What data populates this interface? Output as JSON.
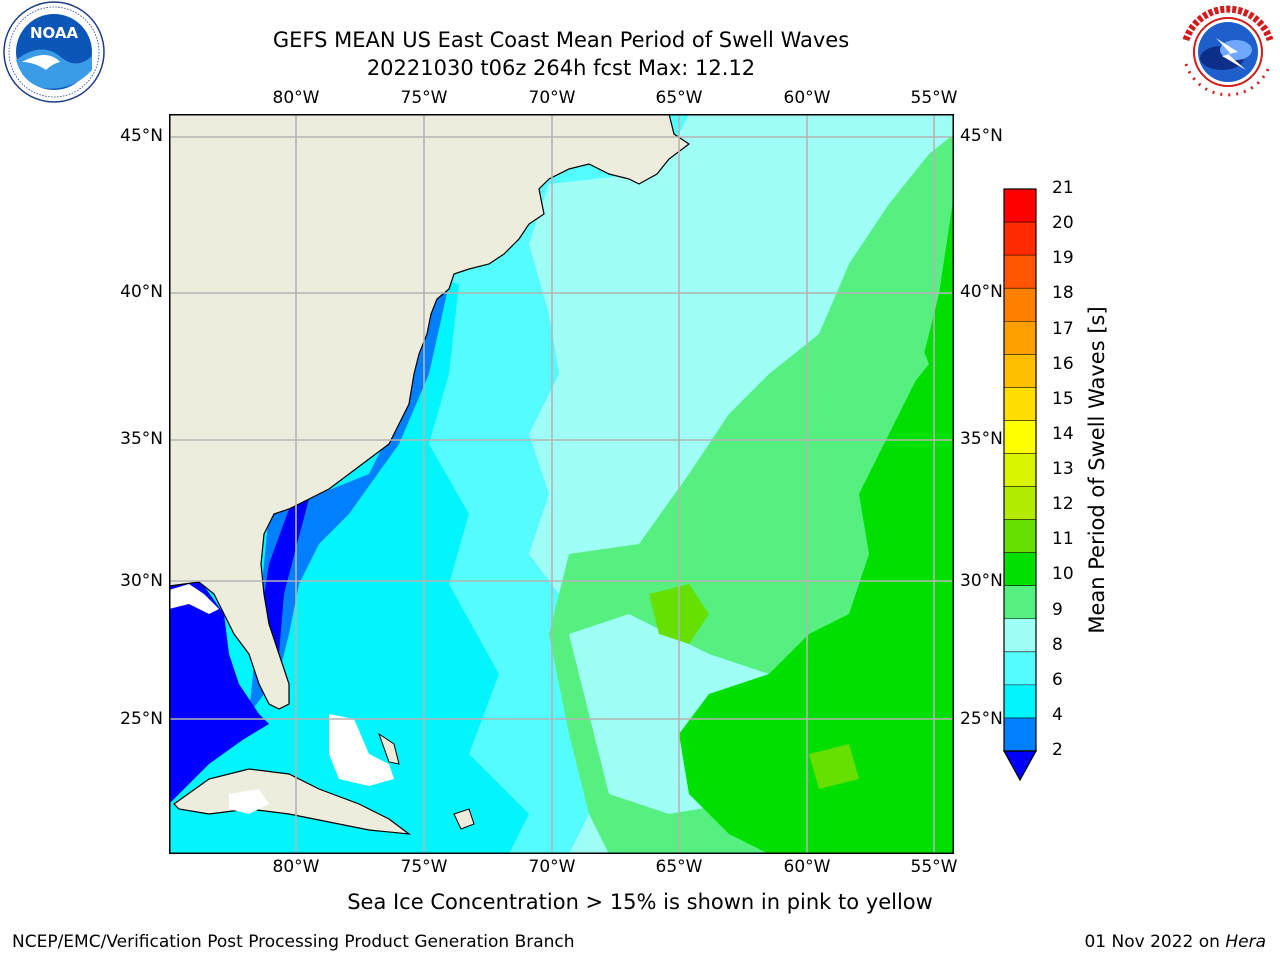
{
  "header": {
    "title_line1": "GEFS MEAN US East Coast Mean Period of Swell Waves",
    "title_line2": "20221030 t06z 264h fcst   Max: 12.12"
  },
  "logos": {
    "left": {
      "icon": "noaa-logo-icon",
      "text": "NOAA",
      "ring_text": "NATIONAL OCEANIC AND ATMOSPHERIC ADMINISTRATION · U.S. DEPARTMENT OF COMMERCE"
    },
    "right": {
      "icon": "national-weather-service-logo-icon",
      "ring_text": "NATIONAL WEATHER SERVICE"
    }
  },
  "map": {
    "longitudes_top": [
      "80°W",
      "75°W",
      "70°W",
      "65°W",
      "60°W",
      "55°W"
    ],
    "longitudes_bottom": [
      "80°W",
      "75°W",
      "70°W",
      "65°W",
      "60°W",
      "55°W"
    ],
    "latitudes_left": [
      "45°N",
      "40°N",
      "35°N",
      "30°N",
      "25°N"
    ],
    "latitudes_right": [
      "45°N",
      "40°N",
      "35°N",
      "30°N",
      "25°N"
    ],
    "land_color": "#eeecdc",
    "grid_color": "#b4b4b4"
  },
  "colorbar": {
    "title": "Mean Period of Swell Waves [s]",
    "ticks": [
      "21",
      "20",
      "19",
      "18",
      "17",
      "16",
      "15",
      "14",
      "13",
      "12",
      "11",
      "10",
      "9",
      "8",
      "6",
      "4",
      "2"
    ],
    "colors_top_to_bottom": [
      "#ff0000",
      "#ff2a00",
      "#ff5500",
      "#ff8000",
      "#ff9f00",
      "#ffbf00",
      "#ffdf00",
      "#ffff00",
      "#d9f500",
      "#b3eb00",
      "#66e000",
      "#00e000",
      "#55f080",
      "#9ffff6",
      "#55fcff",
      "#00f5ff",
      "#0080ff"
    ],
    "under_color": "#0000ff"
  },
  "note": "Sea Ice Concentration > 15% is shown in pink to yellow",
  "footer": {
    "left": "NCEP/EMC/Verification Post Processing Product Generation Branch",
    "right_date": "01 Nov 2022 on ",
    "right_host": "Hera"
  }
}
